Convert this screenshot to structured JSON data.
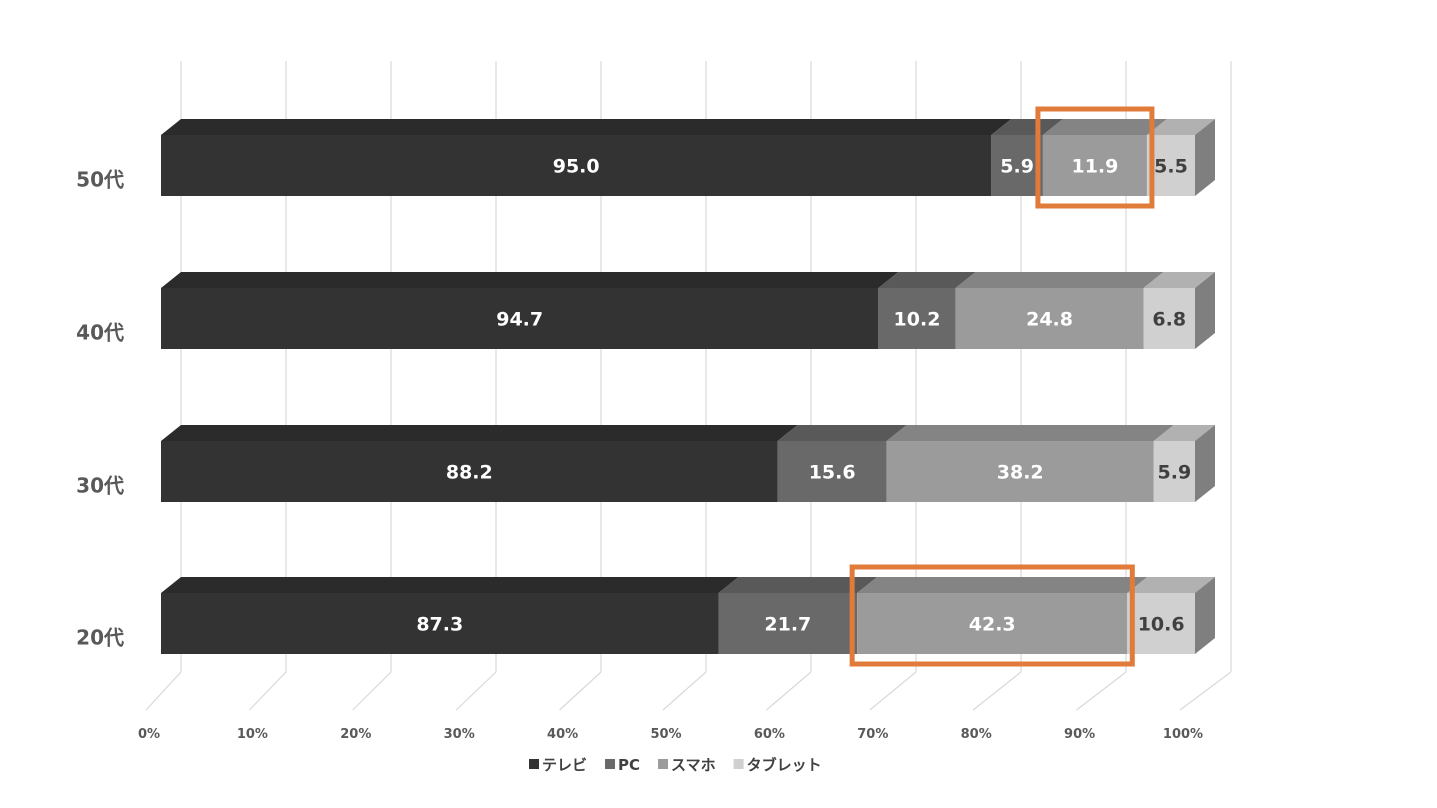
{
  "chart_data": {
    "type": "bar",
    "orientation": "horizontal",
    "stacked": "percent",
    "three_d": true,
    "categories": [
      "50代",
      "40代",
      "30代",
      "20代"
    ],
    "series": [
      {
        "name": "テレビ",
        "values": [
          95.0,
          94.7,
          88.2,
          87.3
        ],
        "color": "#333333",
        "label_color": "#ffffff"
      },
      {
        "name": "PC",
        "values": [
          5.9,
          10.2,
          15.6,
          21.7
        ],
        "color": "#696969",
        "label_color": "#ffffff"
      },
      {
        "name": "スマホ",
        "values": [
          11.9,
          24.8,
          38.2,
          42.3
        ],
        "color": "#9b9b9b",
        "label_color": "#ffffff"
      },
      {
        "name": "タブレット",
        "values": [
          5.5,
          6.8,
          5.9,
          10.6
        ],
        "color": "#d0d0d0",
        "label_color": "#404040"
      }
    ],
    "data_labels": [
      [
        "95.0",
        "94.7",
        "88.2",
        "87.3"
      ],
      [
        "5.9",
        "10.2",
        "15.6",
        "21.7"
      ],
      [
        "11.9",
        "24.8",
        "38.2",
        "42.3"
      ],
      [
        "5.5",
        "6.8",
        "5.9",
        "10.6"
      ]
    ],
    "x_ticks": [
      "0%",
      "10%",
      "20%",
      "30%",
      "40%",
      "50%",
      "60%",
      "70%",
      "80%",
      "90%",
      "100%"
    ],
    "xlim": [
      0,
      100
    ],
    "grid": true,
    "legend_position": "bottom",
    "highlights": [
      {
        "category": "50代",
        "series": "スマホ",
        "color": "#e07b39"
      },
      {
        "category": "20代",
        "series": "スマホ",
        "color": "#e07b39"
      }
    ],
    "title": "",
    "xlabel": "",
    "ylabel": ""
  }
}
